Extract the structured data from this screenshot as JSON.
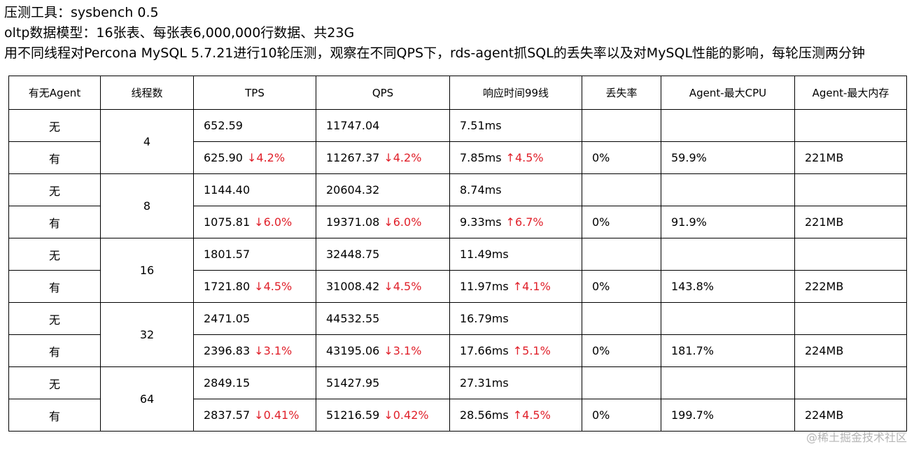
{
  "header": {
    "lines": [
      "压测工具：sysbench 0.5",
      "oltp数据模型：16张表、每张表6,000,000行数据、共23G",
      "用不同线程对Percona MySQL 5.7.21进行10轮压测，观察在不同QPS下，rds-agent抓SQL的丢失率以及对MySQL性能的影响，每轮压测两分钟"
    ]
  },
  "table": {
    "columns": [
      "有无Agent",
      "线程数",
      "TPS",
      "QPS",
      "响应时间99线",
      "丢失率",
      "Agent-最大CPU",
      "Agent-最大内存"
    ],
    "groups": [
      {
        "threads": "4",
        "rows": [
          {
            "agent": "无",
            "tps": "652.59",
            "qps": "11747.04",
            "latency": "7.51ms"
          },
          {
            "agent": "有",
            "tps": "625.90",
            "tps_change": "↓4.2%",
            "qps": "11267.37",
            "qps_change": "↓4.2%",
            "latency": "7.85ms",
            "latency_change": "↑4.5%",
            "loss": "0%",
            "cpu": "59.9%",
            "mem": "221MB"
          }
        ]
      },
      {
        "threads": "8",
        "rows": [
          {
            "agent": "无",
            "tps": "1144.40",
            "qps": "20604.32",
            "latency": "8.74ms"
          },
          {
            "agent": "有",
            "tps": "1075.81",
            "tps_change": "↓6.0%",
            "qps": "19371.08",
            "qps_change": "↓6.0%",
            "latency": "9.33ms",
            "latency_change": "↑6.7%",
            "loss": "0%",
            "cpu": "91.9%",
            "mem": "221MB"
          }
        ]
      },
      {
        "threads": "16",
        "rows": [
          {
            "agent": "无",
            "tps": "1801.57",
            "qps": "32448.75",
            "latency": "11.49ms"
          },
          {
            "agent": "有",
            "tps": "1721.80",
            "tps_change": "↓4.5%",
            "qps": "31008.42",
            "qps_change": "↓4.5%",
            "latency": "11.97ms",
            "latency_change": "↑4.1%",
            "loss": "0%",
            "cpu": "143.8%",
            "mem": "222MB"
          }
        ]
      },
      {
        "threads": "32",
        "rows": [
          {
            "agent": "无",
            "tps": "2471.05",
            "qps": "44532.55",
            "latency": "16.79ms"
          },
          {
            "agent": "有",
            "tps": "2396.83",
            "tps_change": "↓3.1%",
            "qps": "43195.06",
            "qps_change": "↓3.1%",
            "latency": "17.66ms",
            "latency_change": "↑5.1%",
            "loss": "0%",
            "cpu": "181.7%",
            "mem": "224MB"
          }
        ]
      },
      {
        "threads": "64",
        "rows": [
          {
            "agent": "无",
            "tps": "2849.15",
            "qps": "51427.95",
            "latency": "27.31ms"
          },
          {
            "agent": "有",
            "tps": "2837.57",
            "tps_change": "↓0.41%",
            "qps": "51216.59",
            "qps_change": "↓0.42%",
            "latency": "28.56ms",
            "latency_change": "↑4.5%",
            "loss": "0%",
            "cpu": "199.7%",
            "mem": "224MB"
          }
        ]
      }
    ]
  },
  "watermark": "@稀土掘金技术社区"
}
